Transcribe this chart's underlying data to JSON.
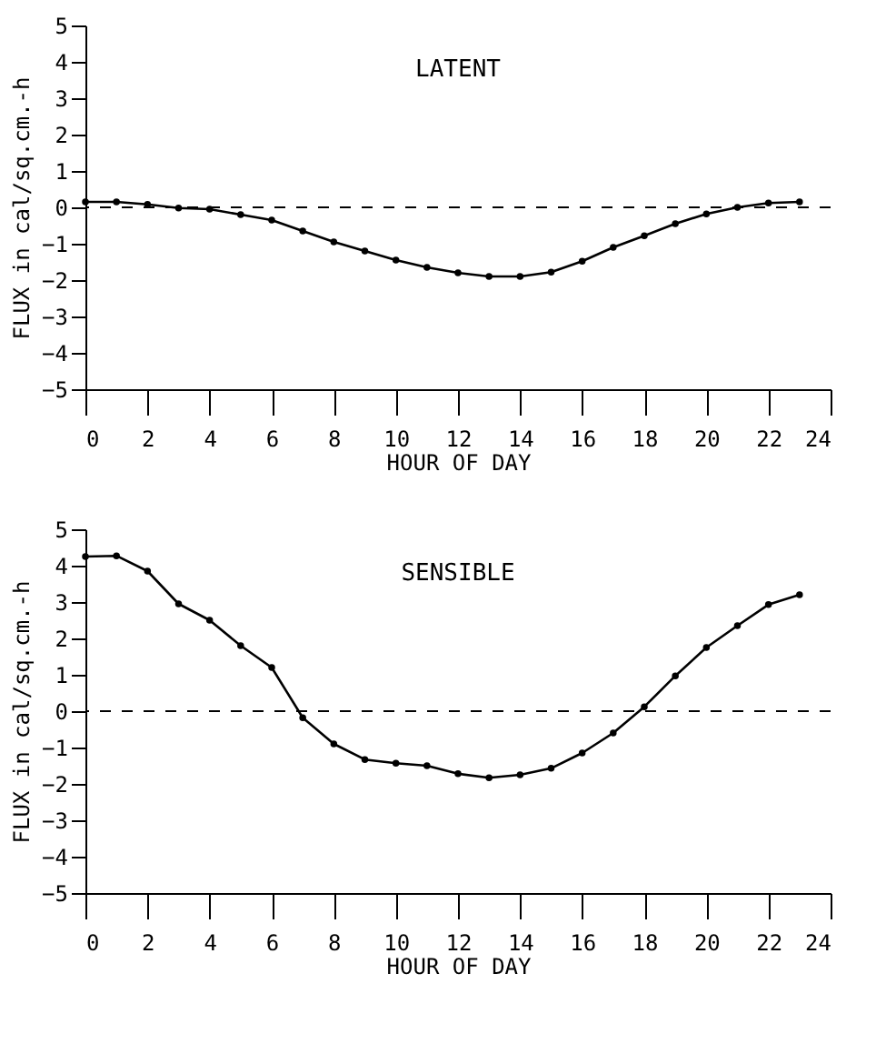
{
  "chart_data": [
    {
      "type": "line",
      "title": "LATENT",
      "xlabel": "HOUR OF DAY",
      "ylabel": "FLUX in cal/sq.cm.-h",
      "x": [
        0,
        1,
        2,
        3,
        4,
        5,
        6,
        7,
        8,
        9,
        10,
        11,
        12,
        13,
        14,
        15,
        16,
        17,
        18,
        19,
        20,
        21,
        22,
        23
      ],
      "series": [
        {
          "color": "#000000",
          "values": [
            0.15,
            0.15,
            0.08,
            -0.02,
            -0.05,
            -0.2,
            -0.35,
            -0.65,
            -0.95,
            -1.2,
            -1.45,
            -1.65,
            -1.8,
            -1.9,
            -1.9,
            -1.78,
            -1.48,
            -1.1,
            -0.78,
            -0.45,
            -0.18,
            0.0,
            0.12,
            0.15
          ]
        }
      ],
      "xlim": [
        0,
        24
      ],
      "xticks": [
        0,
        2,
        4,
        6,
        8,
        10,
        12,
        14,
        16,
        18,
        20,
        22,
        24
      ],
      "ylim": [
        -5,
        5
      ],
      "yticks": [
        -5,
        -4,
        -3,
        -2,
        -1,
        0,
        1,
        2,
        3,
        4,
        5
      ],
      "ref_lines": [
        {
          "axis": "y",
          "value": 0,
          "line_style": "dashed",
          "color": "#000000"
        }
      ],
      "grid": false,
      "marker": "circle",
      "line_style": "solid"
    },
    {
      "type": "line",
      "title": "SENSIBLE",
      "xlabel": "HOUR OF DAY",
      "ylabel": "FLUX in cal/sq.cm.-h",
      "x": [
        0,
        1,
        2,
        3,
        4,
        5,
        6,
        7,
        8,
        9,
        10,
        11,
        12,
        13,
        14,
        15,
        16,
        17,
        18,
        19,
        20,
        21,
        22,
        23
      ],
      "series": [
        {
          "color": "#000000",
          "values": [
            4.25,
            4.27,
            3.85,
            2.95,
            2.5,
            1.8,
            1.2,
            -0.18,
            -0.9,
            -1.33,
            -1.43,
            -1.5,
            -1.72,
            -1.83,
            -1.75,
            -1.57,
            -1.15,
            -0.6,
            0.12,
            0.97,
            1.75,
            2.35,
            2.93,
            3.2
          ]
        }
      ],
      "xlim": [
        0,
        24
      ],
      "xticks": [
        0,
        2,
        4,
        6,
        8,
        10,
        12,
        14,
        16,
        18,
        20,
        22,
        24
      ],
      "ylim": [
        -5,
        5
      ],
      "yticks": [
        -5,
        -4,
        -3,
        -2,
        -1,
        0,
        1,
        2,
        3,
        4,
        5
      ],
      "ref_lines": [
        {
          "axis": "y",
          "value": 0,
          "line_style": "dashed",
          "color": "#000000"
        }
      ],
      "grid": false,
      "marker": "circle",
      "line_style": "solid"
    }
  ]
}
